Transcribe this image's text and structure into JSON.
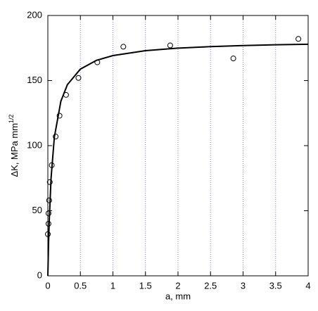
{
  "chart_data": {
    "type": "scatter",
    "x_label": "a, mm",
    "y_label": "ΔK, MPa mm",
    "y_label_superscript": "1/2",
    "xlim": [
      0,
      4
    ],
    "ylim": [
      0,
      200
    ],
    "xticks": [
      0,
      0.5,
      1,
      1.5,
      2,
      2.5,
      3,
      3.5,
      4
    ],
    "yticks": [
      0,
      50,
      100,
      150,
      200
    ],
    "grid": true,
    "grid_color": "#8080e0",
    "points": {
      "color": "#000000",
      "x": [
        0.0,
        0.01,
        0.01,
        0.02,
        0.03,
        0.06,
        0.12,
        0.18,
        0.28,
        0.47,
        0.76,
        1.16,
        1.88,
        2.85,
        3.85
      ],
      "values": [
        32,
        40,
        48,
        58,
        72,
        85,
        107,
        123,
        139,
        152,
        164,
        176,
        177,
        167,
        182
      ]
    },
    "fit": {
      "color": "#000000",
      "x": [
        0,
        0.01,
        0.02,
        0.05,
        0.1,
        0.2,
        0.3,
        0.5,
        0.75,
        1,
        1.5,
        2,
        2.5,
        3,
        3.5,
        4
      ],
      "values": [
        0,
        22.6,
        40.2,
        75.4,
        106.5,
        134.1,
        146.8,
        158.8,
        165.6,
        169.2,
        173,
        174.9,
        176.1,
        176.9,
        177.5,
        177.9
      ]
    }
  }
}
